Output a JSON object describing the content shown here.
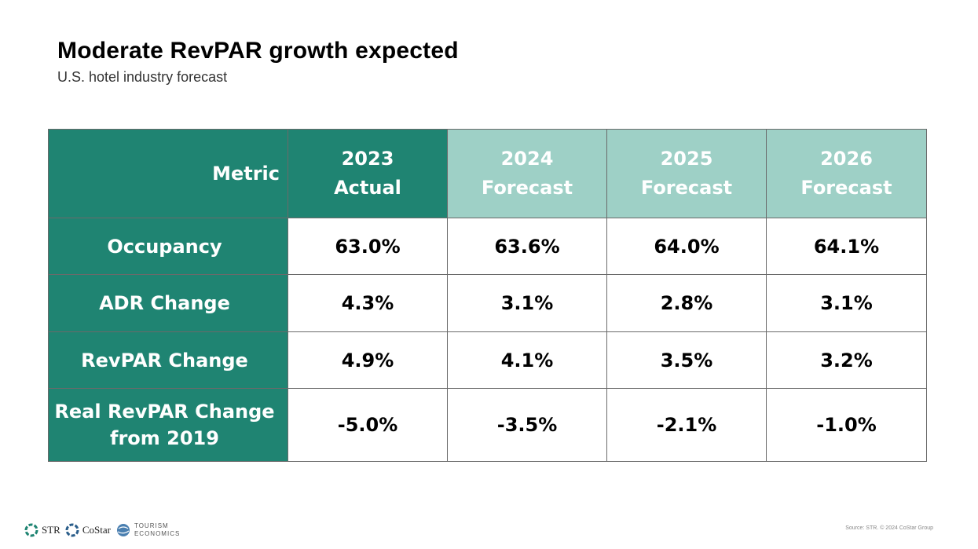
{
  "title": "Moderate RevPAR growth expected",
  "subtitle": "U.S. hotel industry forecast",
  "colors": {
    "dark_teal": "#1f8472",
    "light_teal": "#9ed0c6"
  },
  "chart_data": {
    "type": "table",
    "columns": [
      {
        "line1": "Metric",
        "line2": ""
      },
      {
        "line1": "2023",
        "line2": "Actual"
      },
      {
        "line1": "2024",
        "line2": "Forecast"
      },
      {
        "line1": "2025",
        "line2": "Forecast"
      },
      {
        "line1": "2026",
        "line2": "Forecast"
      }
    ],
    "rows": [
      {
        "metric_line1": "Occupancy",
        "metric_line2": "",
        "values": [
          "63.0%",
          "63.6%",
          "64.0%",
          "64.1%"
        ]
      },
      {
        "metric_line1": "ADR Change",
        "metric_line2": "",
        "values": [
          "4.3%",
          "3.1%",
          "2.8%",
          "3.1%"
        ]
      },
      {
        "metric_line1": "RevPAR Change",
        "metric_line2": "",
        "values": [
          "4.9%",
          "4.1%",
          "3.5%",
          "3.2%"
        ]
      },
      {
        "metric_line1": "Real RevPAR Change",
        "metric_line2": "from 2019",
        "values": [
          "-5.0%",
          "-3.5%",
          "-2.1%",
          "-1.0%"
        ]
      }
    ]
  },
  "footer": {
    "logos": [
      {
        "name": "STR",
        "icon": "str-logo-icon"
      },
      {
        "name": "CoStar",
        "icon": "costar-logo-icon"
      },
      {
        "line1": "TOURISM",
        "line2": "ECONOMICS",
        "icon": "globe-icon"
      }
    ],
    "source": "Source: STR. © 2024 CoStar Group"
  }
}
